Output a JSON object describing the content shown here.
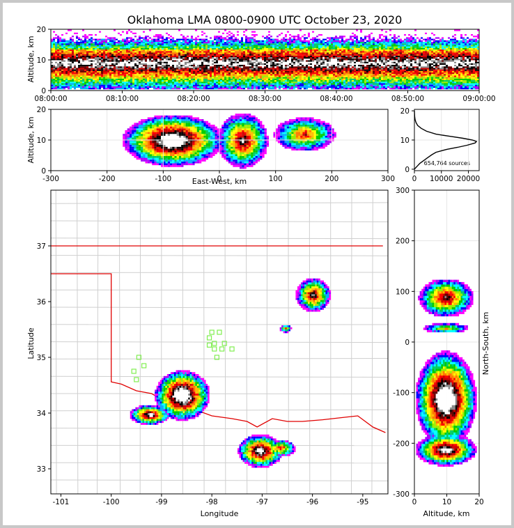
{
  "chart_data": [
    {
      "panel": "time-altitude",
      "type": "heatmap",
      "title": "Oklahoma LMA 0800-0900 UTC October 23, 2020",
      "xlabel": "",
      "ylabel": "Altitude, km",
      "x_ticks": [
        "08:00:00",
        "08:10:00",
        "08:20:00",
        "08:30:00",
        "08:40:00",
        "08:50:00",
        "09:00:00"
      ],
      "xlim": [
        "08:00:00",
        "09:00:00"
      ],
      "ylim": [
        0,
        20
      ],
      "y_ticks": [
        0,
        10,
        20
      ],
      "core_altitude_km": 8.7,
      "band_altitude_km": [
        2,
        19
      ]
    },
    {
      "panel": "east-west-altitude",
      "type": "heatmap",
      "xlabel": "East-West, km",
      "ylabel": "Altitude, km",
      "xlim": [
        -300,
        300
      ],
      "ylim": [
        0,
        20
      ],
      "x_ticks": [
        -300,
        -200,
        -100,
        0,
        100,
        200,
        300
      ],
      "y_ticks": [
        0,
        10,
        20
      ],
      "clusters": [
        {
          "x_km": -85,
          "z_km": 9.5,
          "half_width_km": 90,
          "half_height_km": 8.5,
          "intensity": 1.0
        },
        {
          "x_km": 40,
          "z_km": 9.5,
          "half_width_km": 45,
          "half_height_km": 9,
          "intensity": 0.75
        },
        {
          "x_km": 150,
          "z_km": 11.5,
          "half_width_km": 55,
          "half_height_km": 5.5,
          "intensity": 0.6
        }
      ]
    },
    {
      "panel": "altitude-histogram",
      "type": "line",
      "xlabel": "",
      "ylabel": "",
      "xlim": [
        0,
        24000
      ],
      "ylim": [
        -0.5,
        20.5
      ],
      "x_ticks": [
        0,
        10000,
        20000
      ],
      "y_ticks": [
        0,
        10,
        20
      ],
      "annotation": "654,764 sources",
      "points": [
        [
          0,
          0
        ],
        [
          1000,
          1
        ],
        [
          2000,
          2
        ],
        [
          3500,
          3
        ],
        [
          5000,
          4
        ],
        [
          6500,
          5
        ],
        [
          8000,
          5.8
        ],
        [
          12000,
          6.8
        ],
        [
          16000,
          7.5
        ],
        [
          19500,
          8.2
        ],
        [
          22500,
          9.0
        ],
        [
          23000,
          9.5
        ],
        [
          21500,
          10.0
        ],
        [
          18000,
          10.6
        ],
        [
          13000,
          11.3
        ],
        [
          8000,
          12.0
        ],
        [
          4500,
          13.0
        ],
        [
          2500,
          14.0
        ],
        [
          1200,
          15.0
        ],
        [
          600,
          16.0
        ],
        [
          250,
          17.0
        ],
        [
          100,
          18.0
        ],
        [
          40,
          19.0
        ],
        [
          0,
          20.0
        ]
      ]
    },
    {
      "panel": "plan-view",
      "type": "heatmap",
      "xlabel": "Longitude",
      "ylabel": "Latitude",
      "xlim": [
        -101.2,
        -94.5
      ],
      "ylim": [
        32.55,
        38.0
      ],
      "x_ticks": [
        -101,
        -100,
        -99,
        -98,
        -97,
        -96,
        -95
      ],
      "y_ticks": [
        33,
        34,
        35,
        36,
        37
      ],
      "clusters": [
        {
          "lon": -98.6,
          "lat": 34.3,
          "rx": 0.55,
          "ry": 0.45,
          "intensity": 1.0
        },
        {
          "lon": -99.25,
          "lat": 33.95,
          "rx": 0.4,
          "ry": 0.18,
          "intensity": 0.8
        },
        {
          "lon": -97.05,
          "lat": 33.3,
          "rx": 0.45,
          "ry": 0.3,
          "intensity": 0.85
        },
        {
          "lon": -96.65,
          "lat": 33.35,
          "rx": 0.3,
          "ry": 0.15,
          "intensity": 0.6
        },
        {
          "lon": -96.0,
          "lat": 36.1,
          "rx": 0.35,
          "ry": 0.3,
          "intensity": 0.7
        },
        {
          "lon": -96.55,
          "lat": 35.5,
          "rx": 0.12,
          "ry": 0.07,
          "intensity": 0.5
        }
      ],
      "stations": [
        [
          -99.45,
          35.0
        ],
        [
          -99.35,
          34.85
        ],
        [
          -99.55,
          34.75
        ],
        [
          -99.5,
          34.6
        ],
        [
          -98.0,
          35.45
        ],
        [
          -98.05,
          35.35
        ],
        [
          -97.85,
          35.45
        ],
        [
          -98.05,
          35.22
        ],
        [
          -97.95,
          35.25
        ],
        [
          -97.75,
          35.25
        ],
        [
          -97.8,
          35.15
        ],
        [
          -97.95,
          35.15
        ],
        [
          -97.6,
          35.15
        ],
        [
          -97.9,
          35.0
        ]
      ],
      "state_border_color": "#e00000",
      "station_color": "#80ee50"
    },
    {
      "panel": "altitude-north-south",
      "type": "heatmap",
      "xlabel": "Altitude, km",
      "ylabel": "North-South, km",
      "xlim": [
        0,
        20
      ],
      "ylim": [
        -300,
        300
      ],
      "x_ticks": [
        0,
        10,
        20
      ],
      "y_ticks": [
        -300,
        -200,
        -100,
        0,
        100,
        200,
        300
      ],
      "clusters": [
        {
          "z_km": 9.5,
          "y_km": -115,
          "half_height_km": 95,
          "half_width_km": 9.5,
          "intensity": 1.0
        },
        {
          "z_km": 9.5,
          "y_km": -215,
          "half_height_km": 32,
          "half_width_km": 9.5,
          "intensity": 0.85
        },
        {
          "z_km": 9.5,
          "y_km": 85,
          "half_height_km": 38,
          "half_width_km": 8.5,
          "intensity": 0.7
        },
        {
          "z_km": 9.5,
          "y_km": 25,
          "half_height_km": 10,
          "half_width_km": 7,
          "intensity": 0.45
        }
      ]
    }
  ]
}
